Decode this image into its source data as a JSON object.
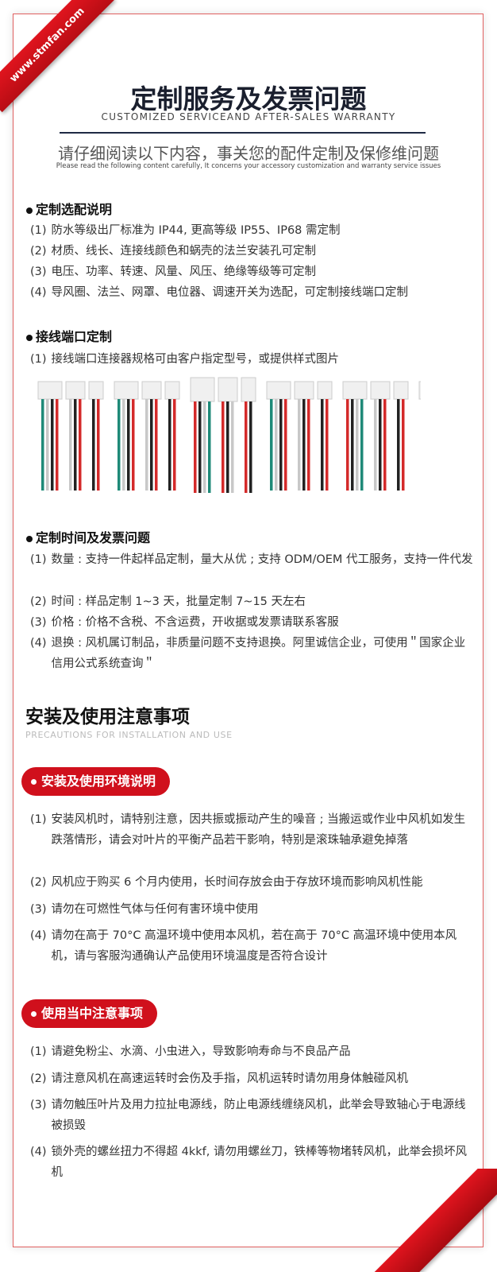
{
  "watermark": "www.stmfan.com",
  "header": {
    "title": "定制服务及发票问题",
    "subtitle": "CUSTOMIZED SERVICEAND AFTER-SALES WARRANTY",
    "note_cn": "请仔细阅读以下内容，事关您的配件定制及保修维问题",
    "note_en": "Please read the following content carefully, It concerns your accessory customization and warranty service issues"
  },
  "sections": [
    {
      "heading": "定制选配说明",
      "items": [
        {
          "n": "(1)",
          "t": "防水等级出厂标准为 IP44, 更高等级 IP55、IP68 需定制"
        },
        {
          "n": "(2)",
          "t": "材质、线长、连接线颜色和蜗壳的法兰安装孔可定制"
        },
        {
          "n": "(3)",
          "t": "电压、功率、转速、风量、风压、绝缘等级等可定制"
        },
        {
          "n": "(4)",
          "t": "导风圈、法兰、网罩、电位器、调速开关为选配，可定制接线端口定制"
        }
      ]
    },
    {
      "heading": "接线端口定制",
      "items": [
        {
          "n": "(1)",
          "t": "接线端口连接器规格可由客户指定型号，或提供样式图片"
        }
      ]
    },
    {
      "heading": "定制时间及发票问题",
      "items": [
        {
          "n": "(1)",
          "t": "数量 : 支持一件起样品定制，量大从优 ; 支持 ODM/OEM 代工服务，支持一件代发"
        },
        {
          "n": "(2)",
          "t": "时间 : 样品定制 1~3 天，批量定制 7~15 天左右"
        },
        {
          "n": "(3)",
          "t": "价格 : 价格不含税、不含运费，开收据或发票请联系客服"
        },
        {
          "n": "(4)",
          "t": "退换 : 风机属订制品，非质量问题不支持退换。阿里诚信企业，可使用＂国家企业信用公式系统查询＂"
        }
      ]
    }
  ],
  "precautions": {
    "title": "安装及使用注意事项",
    "subtitle": "PRECAUTIONS FOR INSTALLATION AND USE",
    "groups": [
      {
        "label": "安装及使用环境说明",
        "items": [
          {
            "n": "(1)",
            "t": "安装风机时，请特别注意，因共振或振动产生的噪音 ; 当搬运或作业中风机如发生跌落情形，请会对叶片的平衡产品若干影响，特别是滚珠轴承避免掉落"
          },
          {
            "n": "(2)",
            "t": "风机应于购买 6 个月内使用，长时间存放会由于存放环境而影响风机性能"
          },
          {
            "n": "(3)",
            "t": "请勿在可燃性气体与任何有害环境中使用"
          },
          {
            "n": "(4)",
            "t": "请勿在高于 70°C 高温环境中使用本风机，若在高于 70°C 高温环境中使用本风机，请与客服沟通确认产品使用环境温度是否符合设计"
          }
        ]
      },
      {
        "label": "使用当中注意事项",
        "items": [
          {
            "n": "(1)",
            "t": "请避免粉尘、水滴、小虫进入，导致影响寿命与不良品产品"
          },
          {
            "n": "(2)",
            "t": "请注意风机在高速运转时会伤及手指，风机运转时请勿用身体触碰风机"
          },
          {
            "n": "(3)",
            "t": "请勿触压叶片及用力拉扯电源线，防止电源线缠绕风机，此举会导致轴心于电源线被损毁"
          },
          {
            "n": "(4)",
            "t": "锁外壳的螺丝扭力不得超 4kkf, 请勿用螺丝刀，铁棒等物堵转风机，此举会损坏风机"
          }
        ]
      }
    ]
  },
  "colors": {
    "accent": "#d0101c",
    "wire_red": "#d42a2a",
    "wire_black": "#222222",
    "wire_green": "#1f8a78",
    "wire_white": "#c8c8c8"
  },
  "connector_wires": [
    [
      "green",
      "white",
      "black",
      "red"
    ],
    [
      "white",
      "black",
      "red"
    ],
    [
      "black",
      "red"
    ],
    [
      "green",
      "white",
      "black",
      "red"
    ],
    [
      "white",
      "black",
      "red"
    ],
    [
      "black",
      "red"
    ],
    [
      "red",
      "black",
      "white",
      "green"
    ],
    [
      "red",
      "black",
      "white"
    ],
    [
      "red",
      "black"
    ],
    [
      "green",
      "white",
      "black",
      "red"
    ],
    [
      "white",
      "black",
      "red"
    ],
    [
      "black",
      "red"
    ],
    [
      "red",
      "black",
      "white",
      "green"
    ],
    [
      "white",
      "black",
      "red"
    ],
    [
      "black",
      "red"
    ],
    [
      "green",
      "white",
      "black",
      "red"
    ],
    [
      "white",
      "black",
      "red"
    ],
    [
      "black",
      "red"
    ]
  ]
}
